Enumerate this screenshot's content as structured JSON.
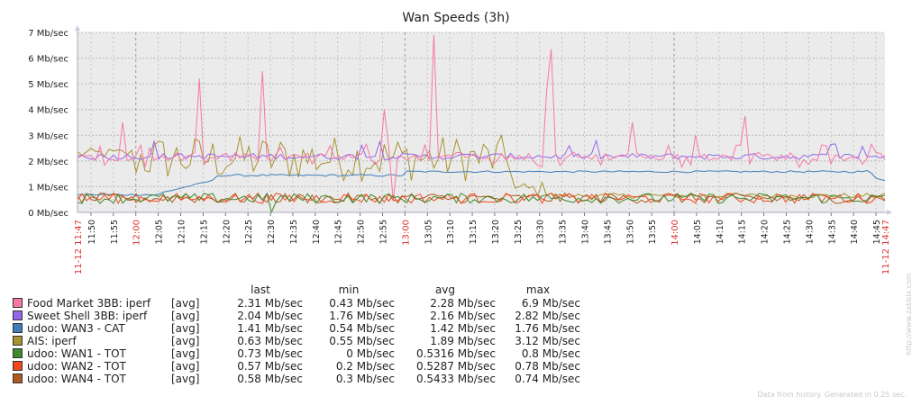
{
  "chart_data": {
    "type": "line",
    "title": "Wan Speeds (3h)",
    "ylim": [
      0,
      7
    ],
    "y_ticks": [
      "0 Mb/sec",
      "1 Mb/sec",
      "2 Mb/sec",
      "3 Mb/sec",
      "4 Mb/sec",
      "5 Mb/sec",
      "6 Mb/sec",
      "7 Mb/sec"
    ],
    "x_start_label": "11-12 11:47",
    "x_end_label": "11-12 14:47",
    "x_ticks": [
      {
        "label": "11:50",
        "red": false
      },
      {
        "label": "11:55",
        "red": false
      },
      {
        "label": "12:00",
        "red": true
      },
      {
        "label": "12:05",
        "red": false
      },
      {
        "label": "12:10",
        "red": false
      },
      {
        "label": "12:15",
        "red": false
      },
      {
        "label": "12:20",
        "red": false
      },
      {
        "label": "12:25",
        "red": false
      },
      {
        "label": "12:30",
        "red": false
      },
      {
        "label": "12:35",
        "red": false
      },
      {
        "label": "12:40",
        "red": false
      },
      {
        "label": "12:45",
        "red": false
      },
      {
        "label": "12:50",
        "red": false
      },
      {
        "label": "12:55",
        "red": false
      },
      {
        "label": "13:00",
        "red": true
      },
      {
        "label": "13:05",
        "red": false
      },
      {
        "label": "13:10",
        "red": false
      },
      {
        "label": "13:15",
        "red": false
      },
      {
        "label": "13:20",
        "red": false
      },
      {
        "label": "13:25",
        "red": false
      },
      {
        "label": "13:30",
        "red": false
      },
      {
        "label": "13:35",
        "red": false
      },
      {
        "label": "13:40",
        "red": false
      },
      {
        "label": "13:45",
        "red": false
      },
      {
        "label": "13:50",
        "red": false
      },
      {
        "label": "13:55",
        "red": false
      },
      {
        "label": "14:00",
        "red": true
      },
      {
        "label": "14:05",
        "red": false
      },
      {
        "label": "14:10",
        "red": false
      },
      {
        "label": "14:15",
        "red": false
      },
      {
        "label": "14:20",
        "red": false
      },
      {
        "label": "14:25",
        "red": false
      },
      {
        "label": "14:30",
        "red": false
      },
      {
        "label": "14:35",
        "red": false
      },
      {
        "label": "14:40",
        "red": false
      },
      {
        "label": "14:45",
        "red": false
      }
    ],
    "legend_headers": {
      "last": "last",
      "min": "min",
      "avg": "avg",
      "max": "max"
    },
    "series": [
      {
        "name": "Food Market 3BB: iperf",
        "func": "[avg]",
        "last": "2.31 Mb/sec",
        "min": "0.43 Mb/sec",
        "avg": "2.28 Mb/sec",
        "max": "6.9 Mb/sec",
        "color": "#f778a5",
        "spikes": [
          [
            11.95,
            3.5
          ],
          [
            12.23,
            5.2
          ],
          [
            12.47,
            5.5
          ],
          [
            12.93,
            4.0
          ],
          [
            13.1,
            6.9
          ],
          [
            13.52,
            4.75
          ],
          [
            13.55,
            6.35
          ],
          [
            13.84,
            3.5
          ],
          [
            14.08,
            3.0
          ],
          [
            14.27,
            3.75
          ]
        ],
        "dips": [
          [
            12.95,
            0.43
          ]
        ],
        "base": [
          2.0,
          2.5
        ]
      },
      {
        "name": "Sweet Shell 3BB: iperf",
        "func": "[avg]",
        "last": "2.04 Mb/sec",
        "min": "1.76 Mb/sec",
        "avg": "2.16 Mb/sec",
        "max": "2.82 Mb/sec",
        "color": "#9466ea",
        "base": [
          1.95,
          2.4
        ]
      },
      {
        "name": "udoo: WAN3 - CAT",
        "func": "[avg]",
        "last": "1.41 Mb/sec",
        "min": "0.54 Mb/sec",
        "avg": "1.42 Mb/sec",
        "max": "1.76 Mb/sec",
        "color": "#3d7fb8"
      },
      {
        "name": "AIS: iperf",
        "func": "[avg]",
        "last": "0.63 Mb/sec",
        "min": "0.55 Mb/sec",
        "avg": "1.89 Mb/sec",
        "max": "3.12 Mb/sec",
        "color": "#a89330"
      },
      {
        "name": "udoo: WAN1 - TOT",
        "func": "[avg]",
        "last": "0.73 Mb/sec",
        "min": "0 Mb/sec",
        "avg": "0.5316 Mb/sec",
        "max": "0.8 Mb/sec",
        "color": "#3f8a2c"
      },
      {
        "name": "udoo: WAN2 - TOT",
        "func": "[avg]",
        "last": "0.57 Mb/sec",
        "min": "0.2 Mb/sec",
        "avg": "0.5287 Mb/sec",
        "max": "0.78 Mb/sec",
        "color": "#f0461d"
      },
      {
        "name": "udoo: WAN4 - TOT",
        "func": "[avg]",
        "last": "0.58 Mb/sec",
        "min": "0.3 Mb/sec",
        "avg": "0.5433 Mb/sec",
        "max": "0.74 Mb/sec",
        "color": "#b05a1f"
      }
    ]
  },
  "footer_text": "Data from history. Generated in 0.25 sec.",
  "watermark_text": "http://www.zabbix.com"
}
